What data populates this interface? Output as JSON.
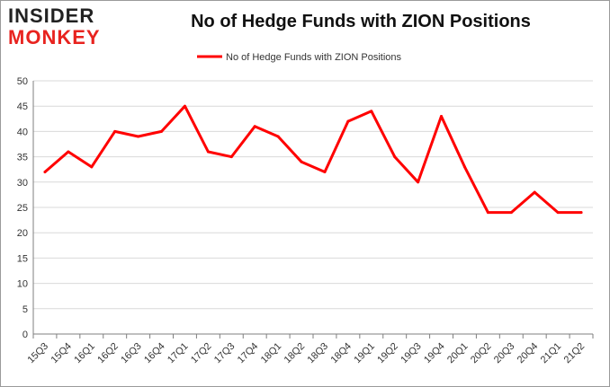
{
  "logo": {
    "line1": "INSIDER",
    "line2": "MONKEY"
  },
  "colors": {
    "series": "#ff0000",
    "grid": "#d9d9d9",
    "axis": "#7f7f7f",
    "logo_accent": "#e8231f"
  },
  "chart_data": {
    "type": "line",
    "title": "No of Hedge Funds with ZION Positions",
    "xlabel": "",
    "ylabel": "",
    "ylim": [
      0,
      50
    ],
    "yticks": [
      0,
      5,
      10,
      15,
      20,
      25,
      30,
      35,
      40,
      45,
      50
    ],
    "grid": "horizontal",
    "legend": "top-center",
    "categories": [
      "15Q3",
      "15Q4",
      "16Q1",
      "16Q2",
      "16Q3",
      "16Q4",
      "17Q1",
      "17Q2",
      "17Q3",
      "17Q4",
      "18Q1",
      "18Q2",
      "18Q3",
      "18Q4",
      "19Q1",
      "19Q2",
      "19Q3",
      "19Q4",
      "20Q1",
      "20Q2",
      "20Q3",
      "20Q4",
      "21Q1",
      "21Q2"
    ],
    "series": [
      {
        "name": "No of Hedge Funds with ZION Positions",
        "values": [
          32,
          36,
          33,
          40,
          39,
          40,
          45,
          36,
          35,
          41,
          39,
          34,
          32,
          42,
          44,
          35,
          30,
          43,
          33,
          24,
          24,
          28,
          24,
          24
        ]
      }
    ]
  }
}
